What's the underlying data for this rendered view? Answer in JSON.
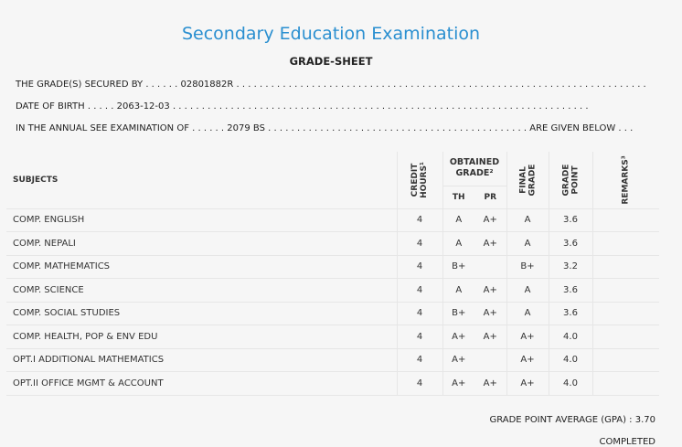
{
  "header": {
    "title": "Secondary Education Examination",
    "subtitle": "GRADE-SHEET"
  },
  "info": {
    "line1_label": "THE GRADE(S) SECURED BY . . . . . .",
    "symbol_no": "02801882R",
    "line1_dots": ". . . . . . . . . . . . . . . . . . . . . . . . . . . . . . . . . . . . . . . . . . . . . . . . . . . . . . . . . . . . . . . . . . . . . . .",
    "line2_label": "DATE OF BIRTH . . . . .",
    "dob": "2063-12-03",
    "line2_dots": ". . . . . . . . . . . . . . . . . . . . . . . . . . . . . . . . . . . . . . . . . . . . . . . . . . . . . . . . . . . . . . . . . . . . . . . .",
    "line3_label": "IN THE ANNUAL SEE EXAMINATION OF . . . . . .",
    "exam_year": "2079 BS",
    "line3_dots": ". . . . . . . . . . . . . . . . . . . . . . . . . . . . . . . . . . . . . . . . . . . . .",
    "line3_tail": "ARE GIVEN BELOW . . ."
  },
  "table": {
    "headers": {
      "subjects": "SUBJECTS",
      "credit_hours": "CREDIT",
      "credit_hours2": "HOURS¹",
      "obtained_grade": "OBTAINED",
      "obtained_grade2": "GRADE²",
      "th": "TH",
      "pr": "PR",
      "final_grade": "FINAL",
      "final_grade2": "GRADE",
      "grade_point": "GRADE",
      "grade_point2": "POINT",
      "remarks": "REMARKS³"
    },
    "rows": [
      {
        "subject": "COMP. ENGLISH",
        "credit": "4",
        "th": "A",
        "pr": "A+",
        "final": "A",
        "gp": "3.6",
        "remarks": ""
      },
      {
        "subject": "COMP. NEPALI",
        "credit": "4",
        "th": "A",
        "pr": "A+",
        "final": "A",
        "gp": "3.6",
        "remarks": ""
      },
      {
        "subject": "COMP. MATHEMATICS",
        "credit": "4",
        "th": "B+",
        "pr": "",
        "final": "B+",
        "gp": "3.2",
        "remarks": ""
      },
      {
        "subject": "COMP. SCIENCE",
        "credit": "4",
        "th": "A",
        "pr": "A+",
        "final": "A",
        "gp": "3.6",
        "remarks": ""
      },
      {
        "subject": "COMP. SOCIAL STUDIES",
        "credit": "4",
        "th": "B+",
        "pr": "A+",
        "final": "A",
        "gp": "3.6",
        "remarks": ""
      },
      {
        "subject": "COMP. HEALTH, POP & ENV EDU",
        "credit": "4",
        "th": "A+",
        "pr": "A+",
        "final": "A+",
        "gp": "4.0",
        "remarks": ""
      },
      {
        "subject": "OPT.I ADDITIONAL MATHEMATICS",
        "credit": "4",
        "th": "A+",
        "pr": "",
        "final": "A+",
        "gp": "4.0",
        "remarks": ""
      },
      {
        "subject": "OPT.II OFFICE MGMT & ACCOUNT",
        "credit": "4",
        "th": "A+",
        "pr": "A+",
        "final": "A+",
        "gp": "4.0",
        "remarks": ""
      }
    ]
  },
  "summary": {
    "gpa_label": "GRADE POINT AVERAGE (GPA) :",
    "gpa_value": "3.70",
    "status": "COMPLETED"
  }
}
